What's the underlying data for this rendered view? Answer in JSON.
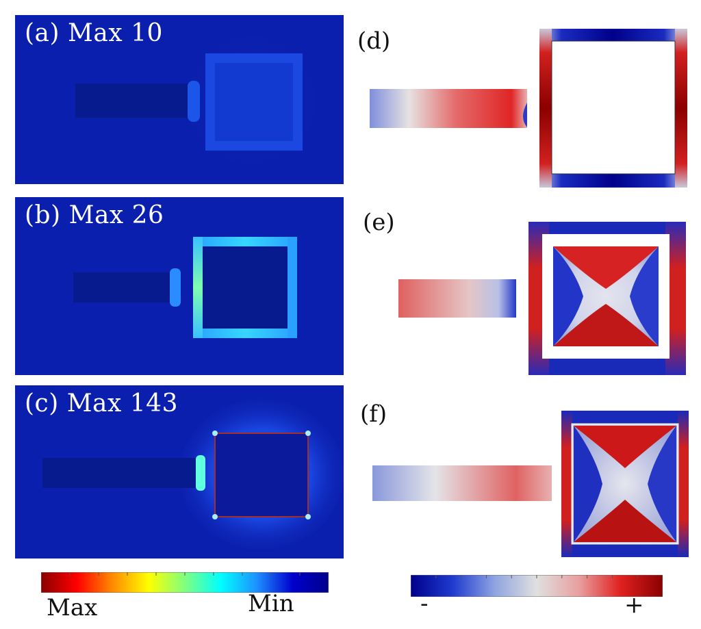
{
  "panels_left": [
    {
      "id": "a",
      "label": "(a) Max 10"
    },
    {
      "id": "b",
      "label": "(b) Max 26"
    },
    {
      "id": "c",
      "label": "(c) Max 143"
    }
  ],
  "panels_right": [
    {
      "id": "d",
      "label": "(d)"
    },
    {
      "id": "e",
      "label": "(e)"
    },
    {
      "id": "f",
      "label": "(f)"
    }
  ],
  "colorbar_left": {
    "min_label": "Min",
    "max_label": "Max",
    "colors": [
      "#8b0000",
      "#ff0000",
      "#ff8c00",
      "#ffff00",
      "#7fff7f",
      "#00ffff",
      "#1e90ff",
      "#0000cd",
      "#00008b"
    ]
  },
  "colorbar_right": {
    "neg_label": "-",
    "pos_label": "+",
    "colors": [
      "#00008b",
      "#1f3bd0",
      "#8fa4e0",
      "#e0e0e0",
      "#e8a0a0",
      "#e02020",
      "#8b0000"
    ]
  }
}
